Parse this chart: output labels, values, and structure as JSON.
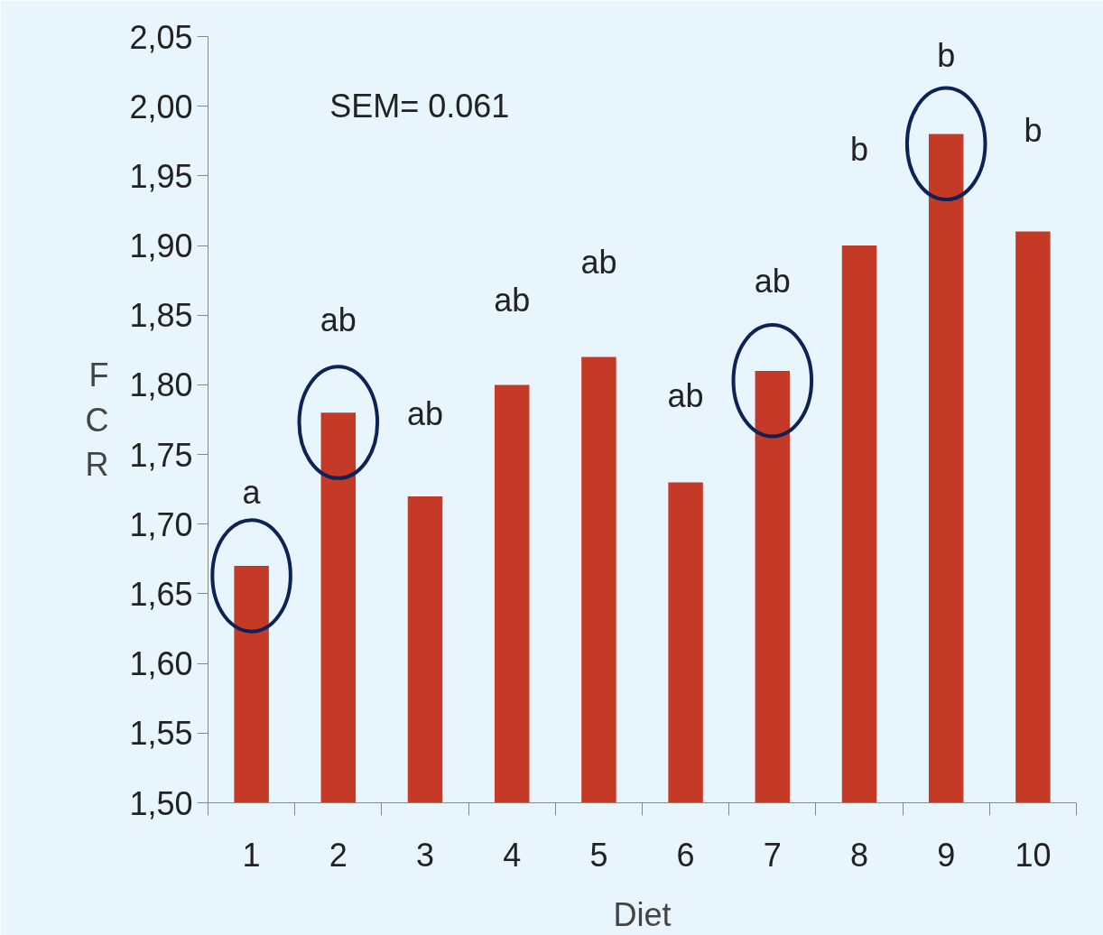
{
  "chart_data": {
    "type": "bar",
    "xlabel": "Diet",
    "ylabel": "FCR",
    "categories": [
      "1",
      "2",
      "3",
      "4",
      "5",
      "6",
      "7",
      "8",
      "9",
      "10"
    ],
    "values": [
      1.67,
      1.78,
      1.72,
      1.8,
      1.82,
      1.73,
      1.81,
      1.9,
      1.98,
      1.91
    ],
    "color": "#c53a27",
    "ylim": [
      1.5,
      2.05
    ],
    "yticks": [
      {
        "value": 1.5,
        "label": "1,50"
      },
      {
        "value": 1.55,
        "label": "1,55"
      },
      {
        "value": 1.6,
        "label": "1,60"
      },
      {
        "value": 1.65,
        "label": "1,65"
      },
      {
        "value": 1.7,
        "label": "1,70"
      },
      {
        "value": 1.75,
        "label": "1,75"
      },
      {
        "value": 1.8,
        "label": "1,80"
      },
      {
        "value": 1.85,
        "label": "1,85"
      },
      {
        "value": 1.9,
        "label": "1,90"
      },
      {
        "value": 1.95,
        "label": "1,95"
      },
      {
        "value": 2.0,
        "label": "2,00"
      },
      {
        "value": 2.05,
        "label": "2,05"
      }
    ],
    "grid": false,
    "annotations": [
      {
        "text": "SEM= 0.061"
      },
      "a",
      "ab",
      "ab",
      "ab",
      "ab",
      "ab",
      "ab",
      "b",
      "b",
      "b"
    ]
  }
}
